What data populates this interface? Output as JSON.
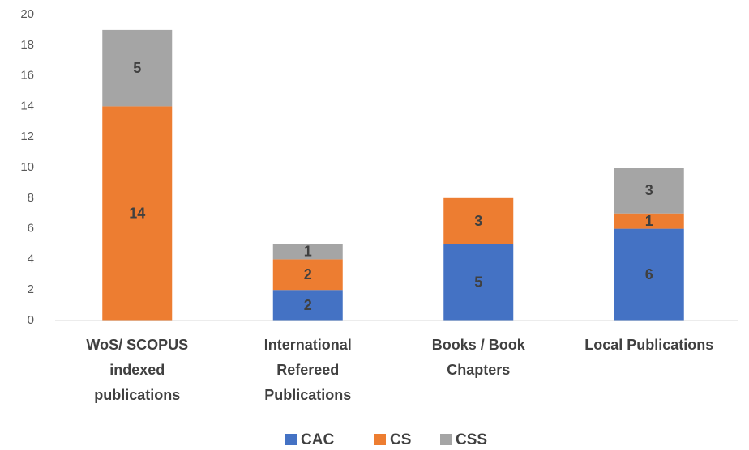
{
  "chart_data": {
    "type": "stacked_bar",
    "categories": [
      [
        "WoS/ SCOPUS",
        "indexed",
        "publications"
      ],
      [
        "International",
        "Refereed",
        "Publications"
      ],
      [
        "Books / Book",
        "Chapters"
      ],
      [
        "Local Publications"
      ]
    ],
    "series": [
      {
        "name": "CAC",
        "color": "#4472c4",
        "values": [
          0,
          2,
          5,
          6
        ]
      },
      {
        "name": "CS",
        "color": "#ed7d31",
        "values": [
          14,
          2,
          3,
          1
        ]
      },
      {
        "name": "CSS",
        "color": "#a5a5a5",
        "values": [
          5,
          1,
          0,
          3
        ]
      }
    ],
    "ylim": [
      0,
      20
    ],
    "yticks": [
      0,
      2,
      4,
      6,
      8,
      10,
      12,
      14,
      16,
      18,
      20
    ],
    "grid": false,
    "legend": "bottom"
  }
}
